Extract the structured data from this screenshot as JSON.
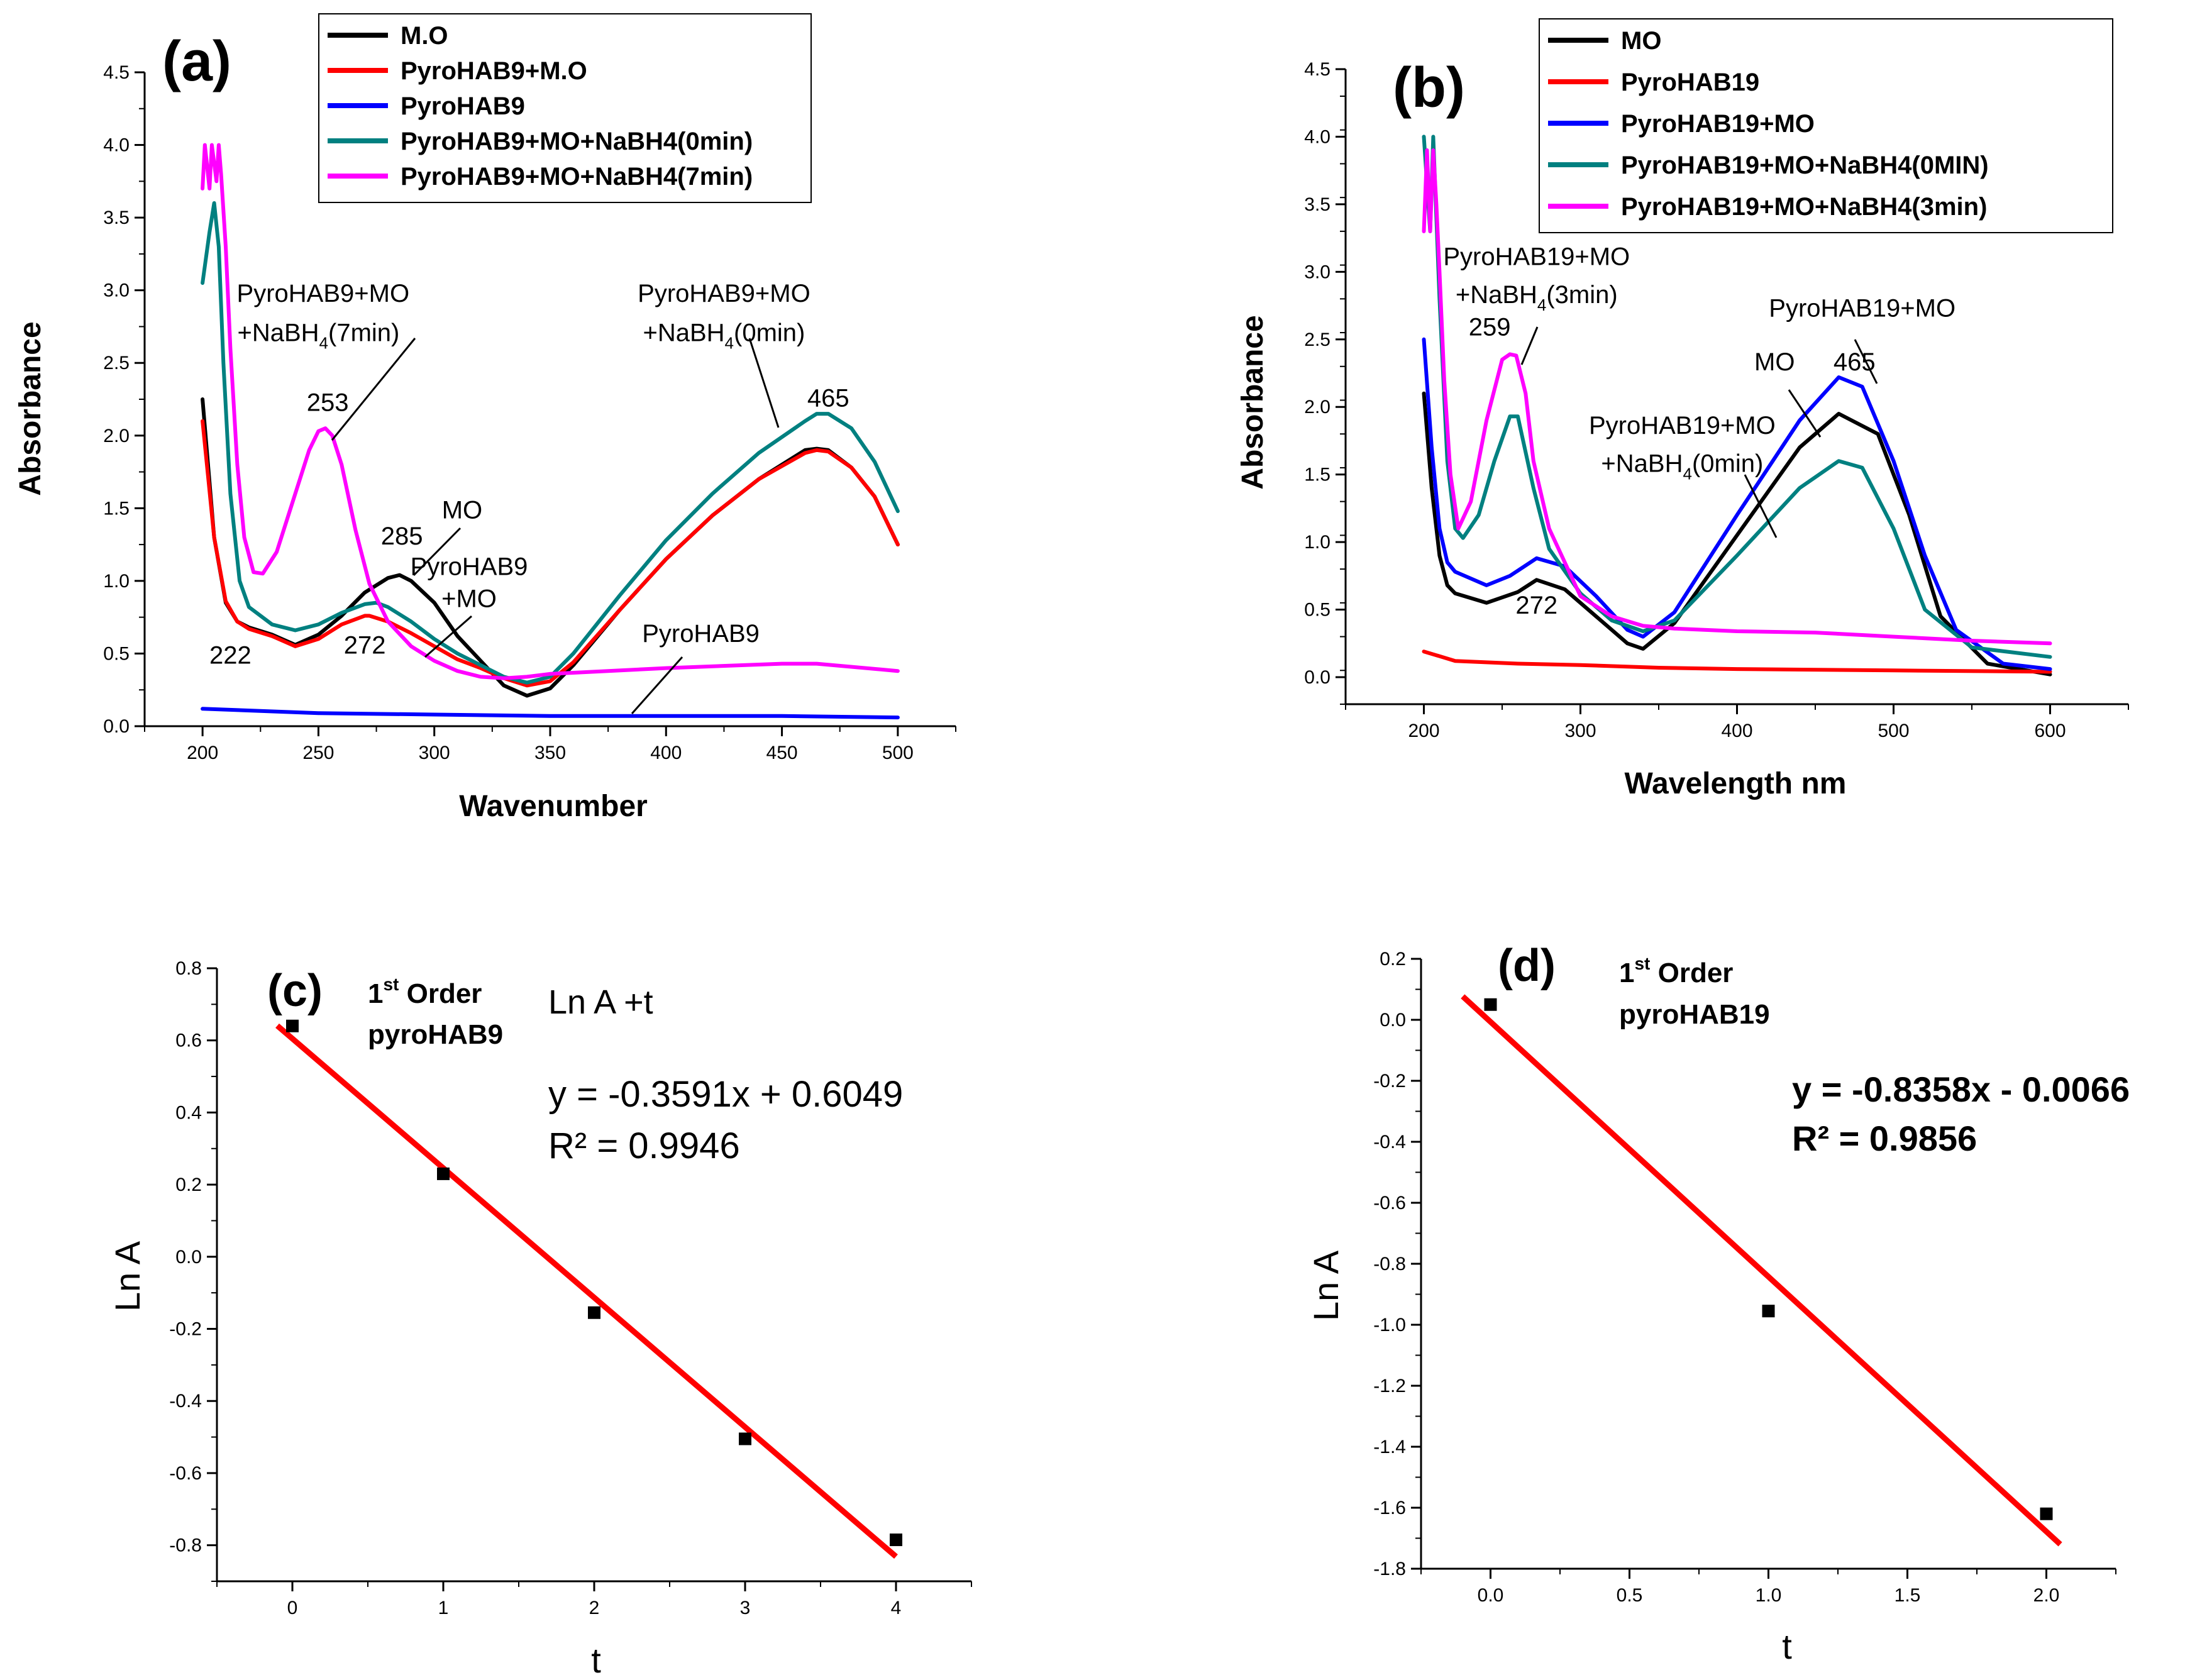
{
  "chart_data": [
    {
      "id": "a",
      "type": "line",
      "panel_label": "(a)",
      "xlabel": "Wavenumber",
      "ylabel": "Absorbance",
      "xlim": [
        175,
        525
      ],
      "ylim": [
        0.0,
        4.5
      ],
      "x_ticks": [
        "200",
        "250",
        "300",
        "350",
        "400",
        "450",
        "500"
      ],
      "y_ticks": [
        "0.0",
        "0.5",
        "1.0",
        "1.5",
        "2.0",
        "2.5",
        "3.0",
        "3.5",
        "4.0",
        "4.5"
      ],
      "legend_position": "top-right",
      "series": [
        {
          "name": "M.O",
          "color": "#000000",
          "x": [
            200,
            205,
            210,
            215,
            220,
            230,
            240,
            250,
            260,
            270,
            280,
            285,
            290,
            300,
            310,
            320,
            330,
            340,
            350,
            360,
            380,
            400,
            420,
            440,
            460,
            465,
            470,
            480,
            490,
            500
          ],
          "y": [
            2.25,
            1.3,
            0.85,
            0.72,
            0.68,
            0.63,
            0.56,
            0.63,
            0.76,
            0.92,
            1.02,
            1.04,
            1.0,
            0.85,
            0.62,
            0.45,
            0.28,
            0.21,
            0.26,
            0.42,
            0.8,
            1.15,
            1.45,
            1.7,
            1.9,
            1.91,
            1.9,
            1.78,
            1.58,
            1.25
          ]
        },
        {
          "name": "PyroHAB9+M.O",
          "color": "#ff0000",
          "x": [
            200,
            205,
            210,
            215,
            220,
            230,
            240,
            250,
            260,
            270,
            272,
            280,
            290,
            300,
            310,
            320,
            330,
            340,
            350,
            360,
            380,
            400,
            420,
            440,
            460,
            465,
            470,
            480,
            490,
            500
          ],
          "y": [
            2.1,
            1.3,
            0.86,
            0.72,
            0.67,
            0.62,
            0.55,
            0.6,
            0.7,
            0.76,
            0.76,
            0.72,
            0.64,
            0.55,
            0.46,
            0.4,
            0.33,
            0.28,
            0.31,
            0.44,
            0.8,
            1.15,
            1.45,
            1.7,
            1.88,
            1.9,
            1.89,
            1.78,
            1.58,
            1.25
          ]
        },
        {
          "name": "PyroHAB9",
          "color": "#0000ff",
          "x": [
            200,
            250,
            300,
            350,
            400,
            450,
            500
          ],
          "y": [
            0.12,
            0.09,
            0.08,
            0.07,
            0.07,
            0.07,
            0.06
          ]
        },
        {
          "name": "PyroHAB9+MO+NaBH4(0min)",
          "color": "#008080",
          "x": [
            200,
            203,
            205,
            207,
            209,
            212,
            216,
            220,
            230,
            240,
            250,
            260,
            270,
            275,
            280,
            290,
            300,
            310,
            320,
            330,
            340,
            350,
            360,
            380,
            400,
            420,
            440,
            460,
            465,
            470,
            480,
            490,
            500
          ],
          "y": [
            3.05,
            3.4,
            3.6,
            3.3,
            2.5,
            1.6,
            1.0,
            0.82,
            0.7,
            0.66,
            0.7,
            0.78,
            0.84,
            0.85,
            0.82,
            0.72,
            0.6,
            0.5,
            0.42,
            0.34,
            0.3,
            0.34,
            0.5,
            0.9,
            1.28,
            1.6,
            1.88,
            2.1,
            2.15,
            2.15,
            2.05,
            1.82,
            1.48
          ]
        },
        {
          "name": "PyroHAB9+MO+NaBH4(7min)",
          "color": "#ff00ff",
          "x": [
            200,
            201,
            203,
            204,
            206,
            207,
            208,
            210,
            212,
            215,
            218,
            222,
            226,
            232,
            240,
            246,
            250,
            253,
            256,
            260,
            266,
            272,
            280,
            290,
            300,
            310,
            320,
            330,
            340,
            350,
            400,
            450,
            465,
            500
          ],
          "y": [
            3.7,
            4.0,
            3.7,
            4.0,
            3.75,
            4.0,
            3.8,
            3.3,
            2.6,
            1.8,
            1.3,
            1.06,
            1.05,
            1.2,
            1.6,
            1.9,
            2.03,
            2.05,
            2.0,
            1.8,
            1.35,
            0.98,
            0.72,
            0.55,
            0.45,
            0.38,
            0.34,
            0.33,
            0.34,
            0.36,
            0.4,
            0.43,
            0.43,
            0.38
          ]
        }
      ],
      "annotations": [
        {
          "text": "253",
          "x": 254,
          "y": 2.17
        },
        {
          "text": "285",
          "x": 286,
          "y": 1.25
        },
        {
          "text": "272",
          "x": 270,
          "y": 0.5
        },
        {
          "text": "222",
          "x": 212,
          "y": 0.43
        },
        {
          "text": "465",
          "x": 470,
          "y": 2.2
        },
        {
          "text": "MO",
          "x": 312,
          "y": 1.43
        },
        {
          "text": "PyroHAB9",
          "x": 315,
          "y": 1.04
        },
        {
          "text": "+MO",
          "x": 315,
          "y": 0.82
        },
        {
          "text": "PyroHAB9",
          "x": 415,
          "y": 0.58
        },
        {
          "text": "PyroHAB9+MO",
          "x": 252,
          "y": 2.92
        },
        {
          "text": "+NaBH",
          "sub": "4",
          "tail": "(7min)",
          "x": 250,
          "y": 2.65
        },
        {
          "text": "PyroHAB9+MO",
          "x": 425,
          "y": 2.92
        },
        {
          "text": "+NaBH",
          "sub": "4",
          "tail": "(0min)",
          "x": 425,
          "y": 2.65
        }
      ]
    },
    {
      "id": "b",
      "type": "line",
      "panel_label": "(b)",
      "xlabel": "Wavelength nm",
      "ylabel": "Absorbance",
      "xlim": [
        150,
        650
      ],
      "ylim": [
        -0.2,
        4.5
      ],
      "x_ticks": [
        "200",
        "300",
        "400",
        "500",
        "600"
      ],
      "y_ticks": [
        "0.0",
        "0.5",
        "1.0",
        "1.5",
        "2.0",
        "2.5",
        "3.0",
        "3.5",
        "4.0",
        "4.5"
      ],
      "legend_position": "top-right",
      "series": [
        {
          "name": "MO",
          "color": "#000000",
          "x": [
            200,
            205,
            210,
            215,
            220,
            240,
            260,
            272,
            290,
            310,
            330,
            340,
            360,
            400,
            440,
            465,
            490,
            510,
            530,
            560,
            600
          ],
          "y": [
            2.1,
            1.4,
            0.9,
            0.68,
            0.62,
            0.55,
            0.63,
            0.72,
            0.65,
            0.45,
            0.25,
            0.21,
            0.4,
            1.05,
            1.7,
            1.95,
            1.8,
            1.2,
            0.45,
            0.1,
            0.02
          ]
        },
        {
          "name": "PyroHAB19",
          "color": "#ff0000",
          "x": [
            200,
            220,
            260,
            300,
            350,
            400,
            500,
            600
          ],
          "y": [
            0.19,
            0.12,
            0.1,
            0.09,
            0.07,
            0.06,
            0.05,
            0.04
          ]
        },
        {
          "name": "PyroHAB19+MO",
          "color": "#0000ff",
          "x": [
            200,
            205,
            210,
            215,
            220,
            240,
            255,
            272,
            290,
            310,
            330,
            340,
            360,
            400,
            440,
            465,
            480,
            500,
            520,
            540,
            570,
            600
          ],
          "y": [
            2.5,
            1.7,
            1.1,
            0.85,
            0.78,
            0.68,
            0.75,
            0.88,
            0.82,
            0.6,
            0.35,
            0.3,
            0.48,
            1.2,
            1.9,
            2.22,
            2.15,
            1.6,
            0.9,
            0.35,
            0.1,
            0.06
          ]
        },
        {
          "name": "PyroHAB19+MO+NaBH4(0MIN)",
          "color": "#008080",
          "x": [
            200,
            204,
            206,
            208,
            210,
            215,
            220,
            225,
            235,
            245,
            255,
            260,
            270,
            280,
            300,
            320,
            340,
            360,
            400,
            440,
            465,
            480,
            500,
            520,
            550,
            600
          ],
          "y": [
            4.0,
            3.3,
            4.0,
            3.4,
            2.8,
            1.6,
            1.1,
            1.03,
            1.2,
            1.6,
            1.93,
            1.93,
            1.4,
            0.95,
            0.62,
            0.42,
            0.34,
            0.42,
            0.9,
            1.4,
            1.6,
            1.55,
            1.1,
            0.5,
            0.22,
            0.15
          ]
        },
        {
          "name": "PyroHAB19+MO+NaBH4(3min)",
          "color": "#ff00ff",
          "x": [
            200,
            202,
            204,
            206,
            208,
            210,
            213,
            217,
            222,
            230,
            240,
            250,
            255,
            259,
            265,
            270,
            280,
            300,
            320,
            340,
            360,
            400,
            450,
            500,
            550,
            600
          ],
          "y": [
            3.3,
            3.9,
            3.3,
            3.9,
            3.5,
            3.0,
            2.2,
            1.5,
            1.1,
            1.3,
            1.9,
            2.35,
            2.39,
            2.38,
            2.1,
            1.6,
            1.1,
            0.6,
            0.45,
            0.38,
            0.36,
            0.34,
            0.33,
            0.3,
            0.27,
            0.25
          ]
        }
      ],
      "annotations": [
        {
          "text": "PyroHAB19+MO",
          "x": 272,
          "y": 3.05
        },
        {
          "text": "+NaBH",
          "sub": "4",
          "tail": "(3min)",
          "x": 272,
          "y": 2.77
        },
        {
          "text": "259",
          "x": 242,
          "y": 2.53
        },
        {
          "text": "PyroHAB19+MO",
          "x": 480,
          "y": 2.67
        },
        {
          "text": "MO",
          "x": 424,
          "y": 2.27
        },
        {
          "text": "465",
          "x": 475,
          "y": 2.27
        },
        {
          "text": "PyroHAB19+MO",
          "x": 365,
          "y": 1.8
        },
        {
          "text": "+NaBH",
          "sub": "4",
          "tail": "(0min)",
          "x": 365,
          "y": 1.52
        },
        {
          "text": "272",
          "x": 272,
          "y": 0.47
        }
      ]
    },
    {
      "id": "c",
      "type": "scatter",
      "panel_label": "(c)",
      "xlabel": "t",
      "ylabel": "Ln A",
      "xlim": [
        -0.5,
        4.5
      ],
      "ylim": [
        -0.9,
        0.8
      ],
      "x_ticks": [
        "0",
        "1",
        "2",
        "3",
        "4"
      ],
      "y_ticks": [
        "-0.8",
        "-0.6",
        "-0.4",
        "-0.2",
        "0.0",
        "0.2",
        "0.4",
        "0.6",
        "0.8"
      ],
      "points": {
        "x": [
          0,
          1,
          2,
          3,
          4
        ],
        "y": [
          0.64,
          0.23,
          -0.155,
          -0.505,
          -0.785
        ]
      },
      "fit": {
        "slope": -0.3591,
        "intercept": 0.6049,
        "x_range": [
          -0.1,
          4.0
        ],
        "color": "#ff0000"
      },
      "order_line1_sup": "st",
      "order_line1_main": " Order",
      "order_line1_num": "1",
      "order_line2": "pyroHAB9",
      "model_label": "Ln A +t",
      "equation": "y = -0.3591x + 0.6049",
      "r_squared": "R² = 0.9946"
    },
    {
      "id": "d",
      "type": "scatter",
      "panel_label": "(d)",
      "xlabel": "t",
      "ylabel": "Ln A",
      "xlim": [
        -0.25,
        2.25
      ],
      "ylim": [
        -1.8,
        0.2
      ],
      "x_ticks": [
        "0.0",
        "0.5",
        "1.0",
        "1.5",
        "2.0"
      ],
      "y_ticks": [
        "-1.8",
        "-1.6",
        "-1.4",
        "-1.2",
        "-1.0",
        "-0.8",
        "-0.6",
        "-0.4",
        "-0.2",
        "0.0",
        "0.2"
      ],
      "points": {
        "x": [
          0,
          1,
          2
        ],
        "y": [
          0.05,
          -0.955,
          -1.62
        ]
      },
      "fit": {
        "slope": -0.8358,
        "intercept": -0.0066,
        "x_range": [
          -0.1,
          2.05
        ],
        "color": "#ff0000"
      },
      "order_line1_sup": "st",
      "order_line1_main": " Order",
      "order_line1_num": "1",
      "order_line2": "pyroHAB19",
      "equation": "y = -0.8358x - 0.0066",
      "r_squared": "R² = 0.9856"
    }
  ]
}
